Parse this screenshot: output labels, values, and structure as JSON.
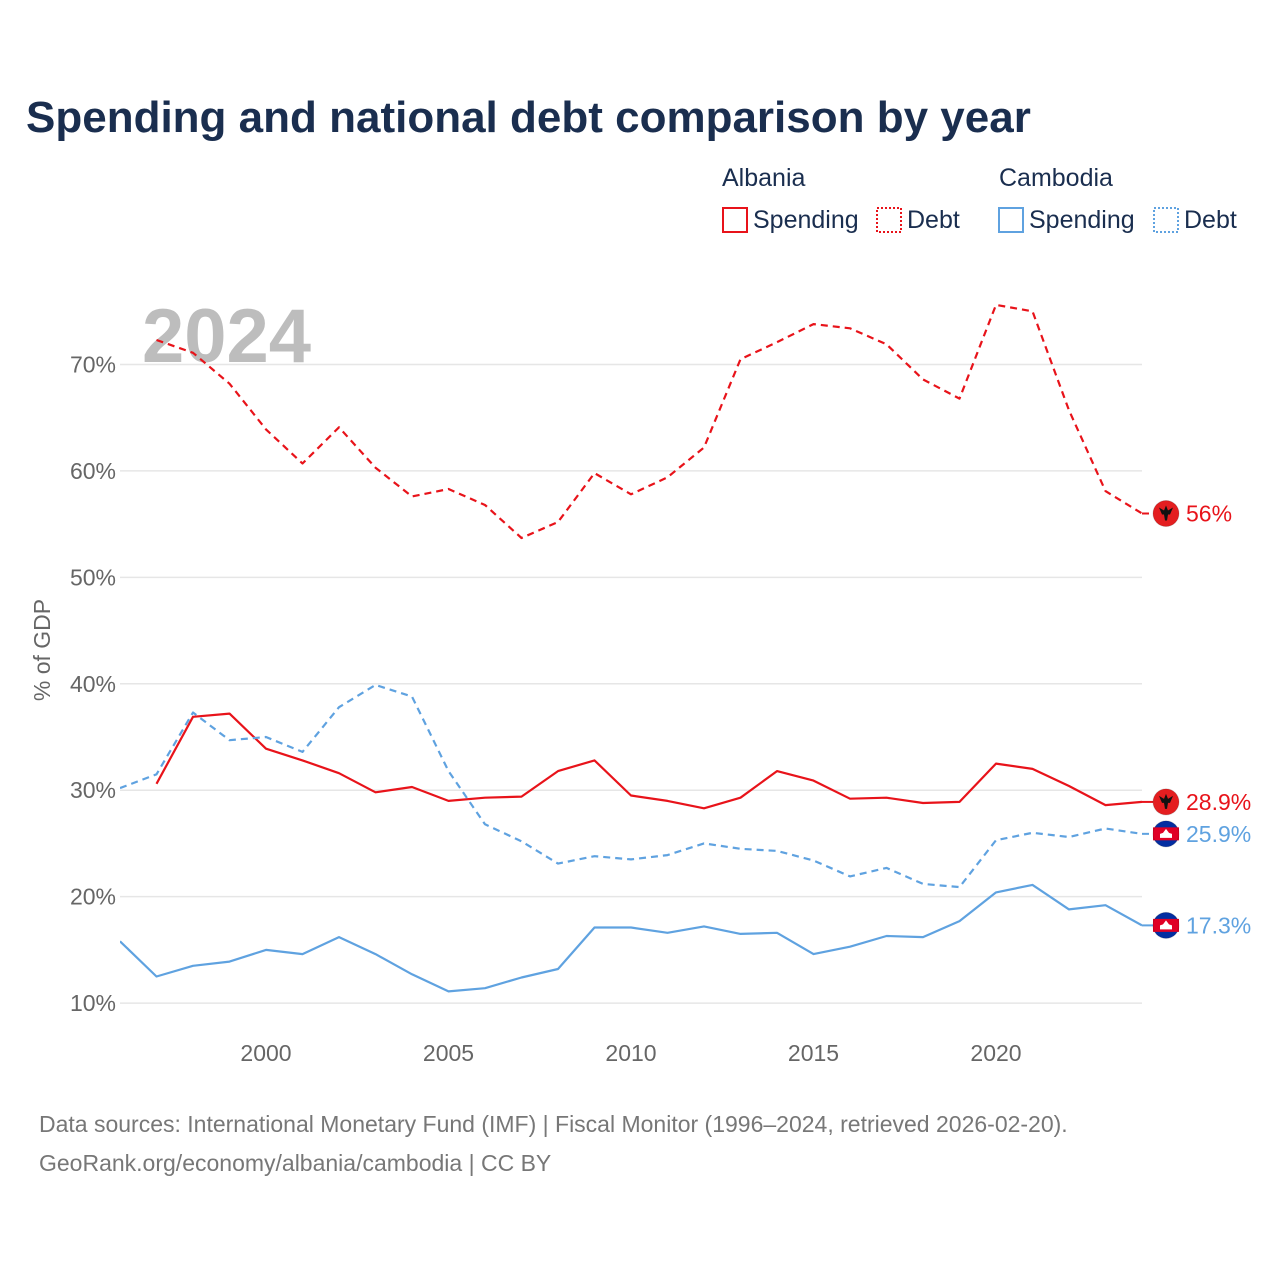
{
  "title": "Spending and national debt comparison by year",
  "watermark_year": "2024",
  "colors": {
    "title": "#1a2e4f",
    "albania": "#e8131a",
    "cambodia": "#5fa2e0",
    "axis_text": "#666666",
    "grid": "#e6e6e6",
    "footer": "#777777",
    "watermark": "#bdbdbd"
  },
  "legend": {
    "groups": [
      {
        "country": "Albania",
        "color_key": "albania",
        "items": [
          "Spending",
          "Debt"
        ]
      },
      {
        "country": "Cambodia",
        "color_key": "cambodia",
        "items": [
          "Spending",
          "Debt"
        ]
      }
    ]
  },
  "footer": {
    "line1": "Data sources: International Monetary Fund (IMF) | Fiscal Monitor (1996–2024, retrieved 2026-02-20).",
    "line2": "GeoRank.org/economy/albania/cambodia | CC BY"
  },
  "chart_data": {
    "type": "line",
    "ylabel": "% of GDP",
    "xlim": [
      1996,
      2024
    ],
    "ylim": [
      7,
      77
    ],
    "x_ticks": [
      2000,
      2005,
      2010,
      2015,
      2020
    ],
    "y_ticks": [
      10,
      20,
      30,
      40,
      50,
      60,
      70
    ],
    "y_tick_labels": [
      "10%",
      "20%",
      "30%",
      "40%",
      "50%",
      "60%",
      "70%"
    ],
    "grid": true,
    "series": [
      {
        "name": "Albania Debt",
        "country": "Albania",
        "metric": "Debt",
        "dashed": true,
        "color_key": "albania",
        "x": [
          1997,
          1998,
          1999,
          2000,
          2001,
          2002,
          2003,
          2004,
          2005,
          2006,
          2007,
          2008,
          2009,
          2010,
          2011,
          2012,
          2013,
          2014,
          2015,
          2016,
          2017,
          2018,
          2019,
          2020,
          2021,
          2022,
          2023,
          2024
        ],
        "values": [
          72.3,
          71.1,
          68.2,
          63.9,
          60.7,
          64.1,
          60.3,
          57.6,
          58.3,
          56.8,
          53.7,
          55.2,
          59.8,
          57.8,
          59.4,
          62.2,
          70.5,
          72.1,
          73.8,
          73.4,
          71.9,
          68.6,
          66.8,
          75.6,
          75.0,
          65.7,
          58.1,
          56.0
        ],
        "end_label": "56%",
        "flag": "albania"
      },
      {
        "name": "Albania Spending",
        "country": "Albania",
        "metric": "Spending",
        "dashed": false,
        "color_key": "albania",
        "x": [
          1997,
          1998,
          1999,
          2000,
          2001,
          2002,
          2003,
          2004,
          2005,
          2006,
          2007,
          2008,
          2009,
          2010,
          2011,
          2012,
          2013,
          2014,
          2015,
          2016,
          2017,
          2018,
          2019,
          2020,
          2021,
          2022,
          2023,
          2024
        ],
        "values": [
          30.6,
          36.9,
          37.2,
          33.9,
          32.8,
          31.6,
          29.8,
          30.3,
          29.0,
          29.3,
          29.4,
          31.8,
          32.8,
          29.5,
          29.0,
          28.3,
          29.3,
          31.8,
          30.9,
          29.2,
          29.3,
          28.8,
          28.9,
          32.5,
          32.0,
          30.4,
          28.6,
          28.9
        ],
        "end_label": "28.9%",
        "flag": "albania"
      },
      {
        "name": "Cambodia Debt",
        "country": "Cambodia",
        "metric": "Debt",
        "dashed": true,
        "color_key": "cambodia",
        "x": [
          1996,
          1997,
          1998,
          1999,
          2000,
          2001,
          2002,
          2003,
          2004,
          2005,
          2006,
          2007,
          2008,
          2009,
          2010,
          2011,
          2012,
          2013,
          2014,
          2015,
          2016,
          2017,
          2018,
          2019,
          2020,
          2021,
          2022,
          2023,
          2024
        ],
        "values": [
          30.2,
          31.5,
          37.3,
          34.7,
          35.0,
          33.6,
          37.8,
          39.9,
          38.8,
          31.8,
          26.8,
          25.2,
          23.1,
          23.8,
          23.5,
          23.9,
          25.0,
          24.5,
          24.3,
          23.4,
          21.9,
          22.7,
          21.2,
          20.9,
          25.3,
          26.0,
          25.6,
          26.4,
          25.9
        ],
        "end_label": "25.9%",
        "flag": "cambodia"
      },
      {
        "name": "Cambodia Spending",
        "country": "Cambodia",
        "metric": "Spending",
        "dashed": false,
        "color_key": "cambodia",
        "x": [
          1996,
          1997,
          1998,
          1999,
          2000,
          2001,
          2002,
          2003,
          2004,
          2005,
          2006,
          2007,
          2008,
          2009,
          2010,
          2011,
          2012,
          2013,
          2014,
          2015,
          2016,
          2017,
          2018,
          2019,
          2020,
          2021,
          2022,
          2023,
          2024
        ],
        "values": [
          15.8,
          12.5,
          13.5,
          13.9,
          15.0,
          14.6,
          16.2,
          14.6,
          12.7,
          11.1,
          11.4,
          12.4,
          13.2,
          17.1,
          17.1,
          16.6,
          17.2,
          16.5,
          16.6,
          14.6,
          15.3,
          16.3,
          16.2,
          17.7,
          20.4,
          21.1,
          18.8,
          19.2,
          17.3
        ],
        "end_label": "17.3%",
        "flag": "cambodia"
      }
    ]
  }
}
